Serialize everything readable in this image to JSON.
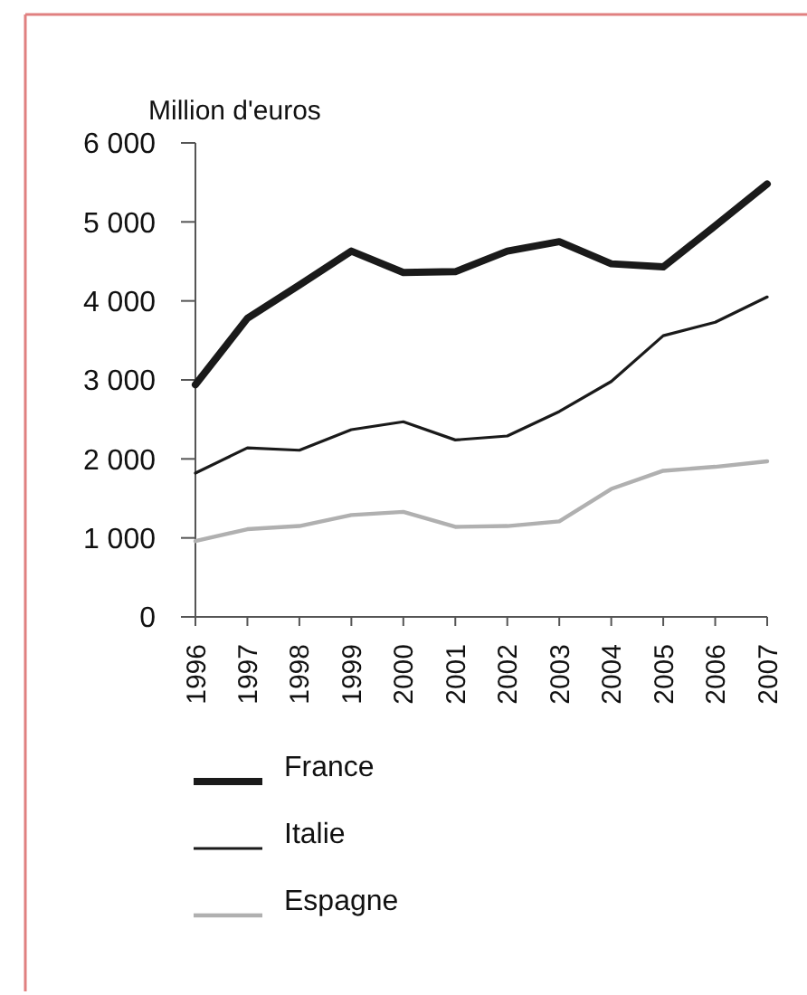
{
  "chart_data": {
    "type": "line",
    "ylabel": "Million d'euros",
    "categories": [
      "1996",
      "1997",
      "1998",
      "1999",
      "2000",
      "2001",
      "2002",
      "2003",
      "2004",
      "2005",
      "2006",
      "2007"
    ],
    "series": [
      {
        "name": "France",
        "color": "#1a1a1a",
        "values": [
          2940,
          3780,
          4200,
          4630,
          4360,
          4370,
          4630,
          4750,
          4470,
          4430,
          4950,
          5480
        ]
      },
      {
        "name": "Italie",
        "color": "#1a1a1a",
        "values": [
          1820,
          2140,
          2110,
          2370,
          2470,
          2240,
          2290,
          2600,
          2980,
          3560,
          3730,
          4050
        ]
      },
      {
        "name": "Espagne",
        "color": "#b0b0b0",
        "values": [
          960,
          1110,
          1150,
          1290,
          1330,
          1140,
          1150,
          1210,
          1620,
          1850,
          1900,
          1970
        ]
      }
    ],
    "ylim": [
      0,
      6000
    ],
    "yticks": [
      {
        "value": 0,
        "label": "0"
      },
      {
        "value": 1000,
        "label": "1 000"
      },
      {
        "value": 2000,
        "label": "2 000"
      },
      {
        "value": 3000,
        "label": "3 000"
      },
      {
        "value": 4000,
        "label": "4 000"
      },
      {
        "value": 5000,
        "label": "5 000"
      },
      {
        "value": 6000,
        "label": "6 000"
      }
    ],
    "grid": false,
    "legend": "bottom",
    "marker": "none",
    "line_style": "solid"
  }
}
